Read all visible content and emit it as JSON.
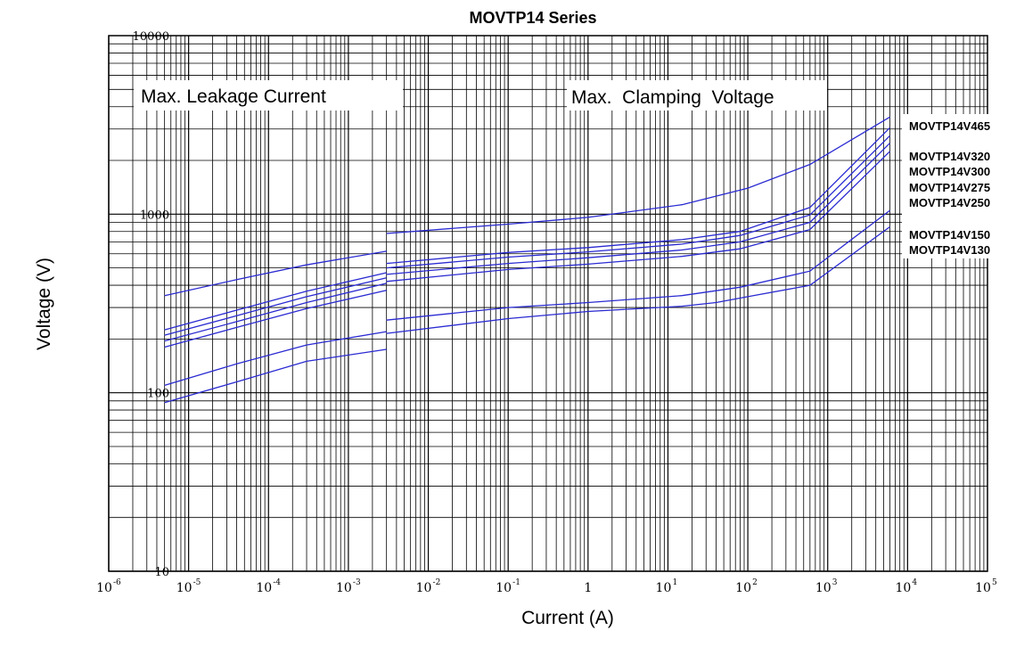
{
  "chart_data": {
    "type": "line",
    "title": "MOVTP14 Series",
    "xlabel": "Current (A)",
    "ylabel": "Voltage  (V)",
    "x_scale": "log",
    "y_scale": "log",
    "xlim": [
      1e-06,
      100000
    ],
    "ylim": [
      10,
      10000
    ],
    "grid": true,
    "legend_placement": "right",
    "colors": {
      "series": "#2a2ad2",
      "grid": "#000000"
    },
    "x_ticks": [
      {
        "value": 1e-06,
        "base": "10",
        "exp": "-6"
      },
      {
        "value": 1e-05,
        "base": "10",
        "exp": "-5"
      },
      {
        "value": 0.0001,
        "base": "10",
        "exp": "-4"
      },
      {
        "value": 0.001,
        "base": "10",
        "exp": "-3"
      },
      {
        "value": 0.01,
        "base": "10",
        "exp": "-2"
      },
      {
        "value": 0.1,
        "base": "10",
        "exp": "-1"
      },
      {
        "value": 1,
        "base": "1",
        "exp": ""
      },
      {
        "value": 10,
        "base": "10",
        "exp": "1"
      },
      {
        "value": 100,
        "base": "10",
        "exp": "2"
      },
      {
        "value": 1000,
        "base": "10",
        "exp": "3"
      },
      {
        "value": 10000,
        "base": "10",
        "exp": "4"
      },
      {
        "value": 100000,
        "base": "10",
        "exp": "5"
      }
    ],
    "y_ticks": [
      {
        "value": 10,
        "label": "10"
      },
      {
        "value": 100,
        "label": "100"
      },
      {
        "value": 1000,
        "label": "1000"
      },
      {
        "value": 10000,
        "label": "10000"
      }
    ],
    "annotations": {
      "leakage": "Max. Leakage Current",
      "clamping": "Max.  Clamping  Voltage"
    },
    "series": [
      {
        "name": "MOVTP14V465",
        "leakage": {
          "x": [
            5e-06,
            4e-05,
            0.0003,
            0.003
          ],
          "y": [
            350,
            430,
            520,
            620
          ]
        },
        "clamping": {
          "x": [
            0.003,
            0.1,
            1,
            15,
            100,
            600,
            6000
          ],
          "y": [
            780,
            880,
            960,
            1130,
            1400,
            1900,
            3500
          ]
        }
      },
      {
        "name": "MOVTP14V320",
        "leakage": {
          "x": [
            5e-06,
            4e-05,
            0.0003,
            0.003
          ],
          "y": [
            225,
            290,
            370,
            470
          ]
        },
        "clamping": {
          "x": [
            0.003,
            0.1,
            1,
            15,
            80,
            600,
            6000
          ],
          "y": [
            530,
            610,
            650,
            720,
            800,
            1090,
            3050
          ]
        }
      },
      {
        "name": "MOVTP14V300",
        "leakage": {
          "x": [
            5e-06,
            4e-05,
            0.0003,
            0.003
          ],
          "y": [
            210,
            270,
            345,
            440
          ]
        },
        "clamping": {
          "x": [
            0.003,
            0.1,
            1,
            15,
            80,
            600,
            6000
          ],
          "y": [
            500,
            575,
            615,
            680,
            760,
            990,
            2750
          ]
        }
      },
      {
        "name": "MOVTP14V275",
        "leakage": {
          "x": [
            5e-06,
            4e-05,
            0.0003,
            0.003
          ],
          "y": [
            195,
            250,
            320,
            410
          ]
        },
        "clamping": {
          "x": [
            0.003,
            0.1,
            1,
            15,
            80,
            600,
            6000
          ],
          "y": [
            460,
            530,
            570,
            630,
            700,
            900,
            2500
          ]
        }
      },
      {
        "name": "MOVTP14V250",
        "leakage": {
          "x": [
            5e-06,
            4e-05,
            0.0003,
            0.003
          ],
          "y": [
            180,
            232,
            296,
            375
          ]
        },
        "clamping": {
          "x": [
            0.003,
            0.1,
            1,
            15,
            80,
            600,
            6000
          ],
          "y": [
            420,
            490,
            525,
            580,
            640,
            820,
            2250
          ]
        }
      },
      {
        "name": "MOVTP14V150",
        "leakage": {
          "x": [
            5e-06,
            4e-05,
            0.0003,
            0.003
          ],
          "y": [
            110,
            145,
            185,
            220
          ]
        },
        "clamping": {
          "x": [
            0.003,
            0.1,
            1,
            15,
            80,
            600,
            6000
          ],
          "y": [
            255,
            300,
            320,
            350,
            390,
            480,
            1050
          ]
        }
      },
      {
        "name": "MOVTP14V130",
        "leakage": {
          "x": [
            5e-06,
            4e-05,
            0.0003,
            0.003
          ],
          "y": [
            88,
            115,
            150,
            175
          ]
        },
        "clamping": {
          "x": [
            0.003,
            0.1,
            1,
            15,
            40,
            100,
            600,
            6000
          ],
          "y": [
            215,
            260,
            285,
            305,
            320,
            345,
            400,
            850
          ]
        }
      }
    ]
  }
}
